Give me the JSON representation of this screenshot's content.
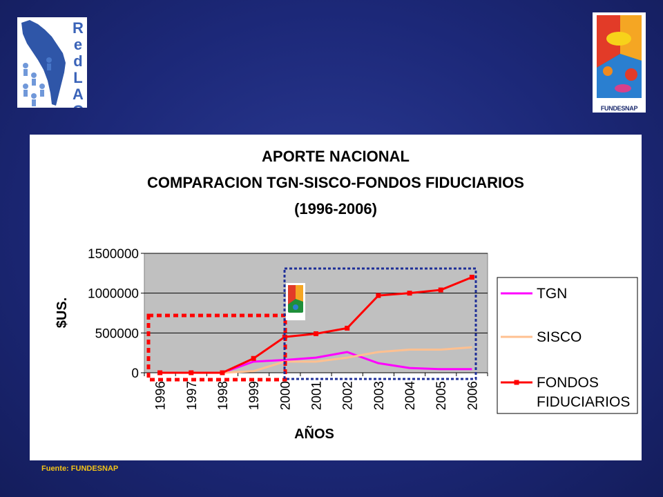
{
  "logos": {
    "left_text": "RedLAC",
    "left_letters": [
      "R",
      "e",
      "d",
      "L",
      "A",
      "C"
    ],
    "right_caption": "FUNDESNAP"
  },
  "source": "Fuente: FUNDESNAP",
  "colors": {
    "background": "#1c2878",
    "plot_area": "#c0c0c0",
    "tgn": "#ff00ff",
    "sisco": "#ffc090",
    "fondos": "#ff0000",
    "highlight_red": "#ff0000",
    "highlight_blue": "#1f2f98"
  },
  "chart_data": {
    "type": "line",
    "title": [
      "APORTE NACIONAL",
      "COMPARACION TGN-SISCO-FONDOS FIDUCIARIOS",
      "(1996-2006)"
    ],
    "xlabel": "AÑOS",
    "ylabel": "$US.",
    "ylim": [
      0,
      1500000
    ],
    "yticks": [
      0,
      500000,
      1000000,
      1500000
    ],
    "categories": [
      "1996",
      "1997",
      "1998",
      "1999",
      "2000",
      "2001",
      "2002",
      "2003",
      "2004",
      "2005",
      "2006"
    ],
    "grid": true,
    "legend": "right",
    "series": [
      {
        "name": "TGN",
        "color": "#ff00ff",
        "marker": false,
        "values": [
          0,
          0,
          0,
          140000,
          160000,
          190000,
          260000,
          120000,
          60000,
          45000,
          45000
        ]
      },
      {
        "name": "SISCO",
        "color": "#ffc090",
        "marker": false,
        "values": [
          0,
          0,
          0,
          20000,
          140000,
          140000,
          190000,
          260000,
          290000,
          290000,
          320000
        ]
      },
      {
        "name": "FONDOS FIDUCIARIOS",
        "legend_lines": [
          "FONDOS",
          "FIDUCIARIOS"
        ],
        "color": "#ff0000",
        "marker": true,
        "values": [
          0,
          0,
          0,
          180000,
          450000,
          490000,
          560000,
          970000,
          1000000,
          1040000,
          1200000
        ]
      }
    ]
  }
}
